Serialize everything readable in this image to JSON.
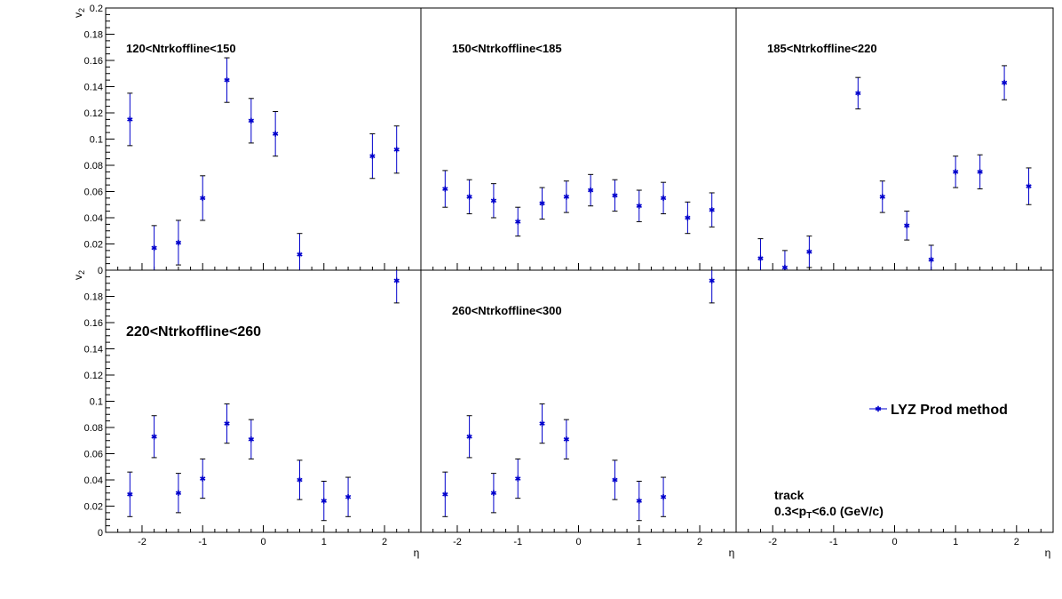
{
  "chart_data": {
    "type": "scatter",
    "layout": "2x3 grid",
    "xlabel": "η",
    "ylabel_main": "v",
    "ylabel_sub": "2",
    "xlim": [
      -2.6,
      2.6
    ],
    "ylim": [
      0,
      0.2
    ],
    "xticks": [
      -2,
      -1,
      0,
      1,
      2
    ],
    "yticks": [
      0,
      0.02,
      0.04,
      0.06,
      0.08,
      0.1,
      0.12,
      0.14,
      0.16,
      0.18,
      0.2
    ],
    "ytick_labels": [
      "0",
      "0.02",
      "0.04",
      "0.06",
      "0.08",
      "0.1",
      "0.12",
      "0.14",
      "0.16",
      "0.18",
      "0.2"
    ],
    "marker_color": "#0000cc",
    "legend": {
      "label": "LYZ Prod method",
      "position": "bottom-right panel"
    },
    "annotation": {
      "line1": "track",
      "line2_a": "0.3<p",
      "line2_sub": "T",
      "line2_b": "<6.0 (GeV/c)"
    },
    "panels": [
      {
        "label": "120<Ntrkoffline<150",
        "label_style": "small",
        "points": [
          {
            "x": -2.2,
            "y": 0.115,
            "err": 0.02
          },
          {
            "x": -1.8,
            "y": 0.017,
            "err": 0.017
          },
          {
            "x": -1.4,
            "y": 0.021,
            "err": 0.017
          },
          {
            "x": -1.0,
            "y": 0.055,
            "err": 0.017
          },
          {
            "x": -0.6,
            "y": 0.145,
            "err": 0.017
          },
          {
            "x": -0.2,
            "y": 0.114,
            "err": 0.017
          },
          {
            "x": 0.2,
            "y": 0.104,
            "err": 0.017
          },
          {
            "x": 0.6,
            "y": 0.012,
            "err": 0.016
          },
          {
            "x": 1.8,
            "y": 0.087,
            "err": 0.017
          },
          {
            "x": 2.2,
            "y": 0.092,
            "err": 0.018
          }
        ]
      },
      {
        "label": "150<Ntrkoffline<185",
        "label_style": "small",
        "points": [
          {
            "x": -2.2,
            "y": 0.062,
            "err": 0.014
          },
          {
            "x": -1.8,
            "y": 0.056,
            "err": 0.013
          },
          {
            "x": -1.4,
            "y": 0.053,
            "err": 0.013
          },
          {
            "x": -1.0,
            "y": 0.037,
            "err": 0.011
          },
          {
            "x": -0.6,
            "y": 0.051,
            "err": 0.012
          },
          {
            "x": -0.2,
            "y": 0.056,
            "err": 0.012
          },
          {
            "x": 0.2,
            "y": 0.061,
            "err": 0.012
          },
          {
            "x": 0.6,
            "y": 0.057,
            "err": 0.012
          },
          {
            "x": 1.0,
            "y": 0.049,
            "err": 0.012
          },
          {
            "x": 1.4,
            "y": 0.055,
            "err": 0.012
          },
          {
            "x": 1.8,
            "y": 0.04,
            "err": 0.012
          },
          {
            "x": 2.2,
            "y": 0.046,
            "err": 0.013
          }
        ]
      },
      {
        "label": "185<Ntrkoffline<220",
        "label_style": "small",
        "points": [
          {
            "x": -2.2,
            "y": 0.009,
            "err": 0.015
          },
          {
            "x": -1.8,
            "y": 0.002,
            "err": 0.013
          },
          {
            "x": -1.4,
            "y": 0.014,
            "err": 0.012
          },
          {
            "x": -0.6,
            "y": 0.135,
            "err": 0.012
          },
          {
            "x": -0.2,
            "y": 0.056,
            "err": 0.012
          },
          {
            "x": 0.2,
            "y": 0.034,
            "err": 0.011
          },
          {
            "x": 0.6,
            "y": 0.008,
            "err": 0.011
          },
          {
            "x": 1.0,
            "y": 0.075,
            "err": 0.012
          },
          {
            "x": 1.4,
            "y": 0.075,
            "err": 0.013
          },
          {
            "x": 1.8,
            "y": 0.143,
            "err": 0.013
          },
          {
            "x": 2.2,
            "y": 0.064,
            "err": 0.014
          }
        ]
      },
      {
        "label": "220<Ntrkoffline<260",
        "label_style": "big",
        "points": [
          {
            "x": -2.2,
            "y": 0.029,
            "err": 0.017
          },
          {
            "x": -1.8,
            "y": 0.073,
            "err": 0.016
          },
          {
            "x": -1.4,
            "y": 0.03,
            "err": 0.015
          },
          {
            "x": -1.0,
            "y": 0.041,
            "err": 0.015
          },
          {
            "x": -0.6,
            "y": 0.083,
            "err": 0.015
          },
          {
            "x": -0.2,
            "y": 0.071,
            "err": 0.015
          },
          {
            "x": 0.6,
            "y": 0.04,
            "err": 0.015
          },
          {
            "x": 1.0,
            "y": 0.024,
            "err": 0.015
          },
          {
            "x": 1.4,
            "y": 0.027,
            "err": 0.015
          },
          {
            "x": 2.2,
            "y": 0.192,
            "err": 0.017
          }
        ]
      },
      {
        "label": "260<Ntrkoffline<300",
        "label_style": "small",
        "points": [
          {
            "x": -2.2,
            "y": 0.029,
            "err": 0.017
          },
          {
            "x": -1.8,
            "y": 0.073,
            "err": 0.016
          },
          {
            "x": -1.4,
            "y": 0.03,
            "err": 0.015
          },
          {
            "x": -1.0,
            "y": 0.041,
            "err": 0.015
          },
          {
            "x": -0.6,
            "y": 0.083,
            "err": 0.015
          },
          {
            "x": -0.2,
            "y": 0.071,
            "err": 0.015
          },
          {
            "x": 0.6,
            "y": 0.04,
            "err": 0.015
          },
          {
            "x": 1.0,
            "y": 0.024,
            "err": 0.015
          },
          {
            "x": 1.4,
            "y": 0.027,
            "err": 0.015
          },
          {
            "x": 2.2,
            "y": 0.192,
            "err": 0.017
          }
        ]
      },
      {
        "label": "",
        "label_style": "none",
        "points": []
      }
    ]
  }
}
